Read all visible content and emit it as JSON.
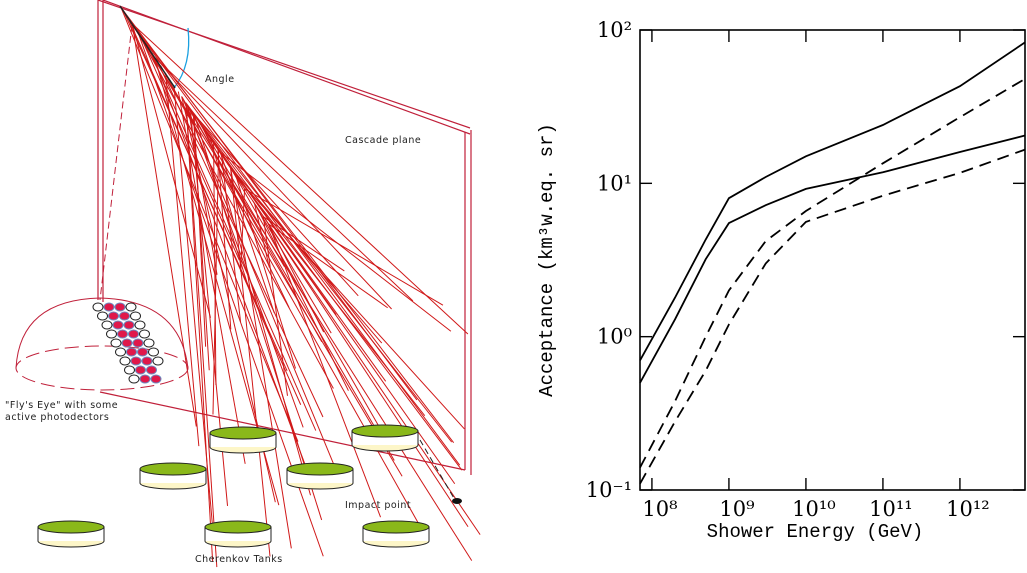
{
  "diagram": {
    "labels": {
      "angle": "Angle",
      "plane": "Cascade plane",
      "eye1": "\"Fly's Eye\" with some",
      "eye2": "active photodectors",
      "impact": "Impact point",
      "tanks": "Cherenkov Tanks"
    }
  },
  "chart_data": {
    "type": "line",
    "log_x": true,
    "log_y": true,
    "xlabel": "Shower Energy (GeV)",
    "ylabel": "Acceptance (km³w.eq. sr)",
    "x": [
      70000000,
      200000000,
      500000000,
      1000000000,
      3000000000,
      10000000000,
      100000000000,
      1000000000000,
      7000000000000
    ],
    "series": [
      {
        "color": "#000000",
        "dash": false,
        "values": [
          0.7,
          1.8,
          4.3,
          8,
          11,
          15,
          24,
          43,
          83
        ]
      },
      {
        "color": "#000000",
        "dash": false,
        "values": [
          0.5,
          1.3,
          3.2,
          5.5,
          7.2,
          9.2,
          11.8,
          16,
          20.5
        ]
      },
      {
        "color": "#000000",
        "dash": true,
        "values": [
          0.14,
          0.38,
          1.0,
          2.0,
          4.2,
          6.6,
          13.5,
          27,
          48
        ]
      },
      {
        "color": "#000000",
        "dash": true,
        "values": [
          0.11,
          0.28,
          0.6,
          1.2,
          3.0,
          5.6,
          8.3,
          11.7,
          16.6
        ]
      }
    ],
    "xlim": [
      70000000,
      7000000000000
    ],
    "ylim": [
      0.1,
      100
    ],
    "xticks": [
      {
        "value": 100000000,
        "label": "10⁸"
      },
      {
        "value": 1000000000,
        "label": "10⁹"
      },
      {
        "value": 10000000000,
        "label": "10¹⁰"
      },
      {
        "value": 100000000000,
        "label": "10¹¹"
      },
      {
        "value": 1000000000000,
        "label": "10¹²"
      }
    ],
    "yticks": [
      {
        "value": 0.1,
        "label": "10⁻¹"
      },
      {
        "value": 1,
        "label": "10⁰"
      },
      {
        "value": 10,
        "label": "10¹"
      },
      {
        "value": 100,
        "label": "10²"
      }
    ]
  }
}
